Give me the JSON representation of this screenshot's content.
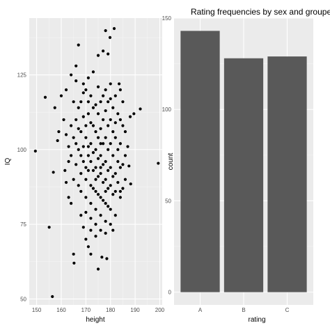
{
  "chart_data": [
    {
      "type": "scatter",
      "title": "",
      "xlabel": "height",
      "ylabel": "IQ",
      "xlim": [
        147,
        201
      ],
      "ylim": [
        48,
        144
      ],
      "x_ticks": [
        "150",
        "160",
        "170",
        "180",
        "190",
        "200"
      ],
      "y_ticks": [
        "50",
        "75",
        "100",
        "125"
      ],
      "grid": true,
      "points": [
        [
          149.5,
          99.5
        ],
        [
          153.5,
          117.5
        ],
        [
          155.1,
          74
        ],
        [
          156.4,
          50.8
        ],
        [
          156.8,
          92.4
        ],
        [
          157.4,
          114
        ],
        [
          199.4,
          95.4
        ],
        [
          192.1,
          113.6
        ],
        [
          188.2,
          88.5
        ],
        [
          187.5,
          94.5
        ],
        [
          188,
          111
        ],
        [
          189.5,
          112
        ],
        [
          165,
          65
        ],
        [
          165.2,
          62
        ],
        [
          167,
          135
        ],
        [
          171,
          67.5
        ],
        [
          172,
          65
        ],
        [
          175,
          60
        ],
        [
          176.5,
          64
        ],
        [
          178.5,
          63.5
        ],
        [
          177,
          133
        ],
        [
          175,
          131.5
        ],
        [
          178,
          139.8
        ],
        [
          179.8,
          137.5
        ],
        [
          181.5,
          140.5
        ],
        [
          179,
          132
        ],
        [
          183.5,
          122
        ],
        [
          184,
          120
        ],
        [
          185,
          116
        ],
        [
          187,
          101
        ],
        [
          185,
          95
        ],
        [
          186,
          90
        ],
        [
          184,
          86
        ],
        [
          180,
          75
        ],
        [
          181,
          73
        ],
        [
          182,
          78
        ],
        [
          183,
          100
        ],
        [
          160,
          118
        ],
        [
          161,
          110
        ],
        [
          162,
          105
        ],
        [
          163,
          96
        ],
        [
          161.5,
          93
        ],
        [
          158.5,
          103
        ],
        [
          159,
          106
        ],
        [
          162,
          120
        ],
        [
          164,
          125
        ],
        [
          166,
          123
        ],
        [
          166,
          128
        ],
        [
          168,
          78
        ],
        [
          169,
          74
        ],
        [
          170,
          70
        ],
        [
          172,
          73
        ],
        [
          174,
          71
        ],
        [
          176,
          73
        ],
        [
          178,
          72
        ],
        [
          169,
          119
        ],
        [
          171,
          116
        ],
        [
          173,
          114
        ],
        [
          175,
          112
        ],
        [
          177,
          110
        ],
        [
          179,
          108
        ],
        [
          181,
          106
        ],
        [
          168,
          106
        ],
        [
          170,
          104
        ],
        [
          172,
          102
        ],
        [
          174,
          100
        ],
        [
          176,
          98
        ],
        [
          178,
          96
        ],
        [
          180,
          94
        ],
        [
          168,
          92
        ],
        [
          170,
          90
        ],
        [
          172,
          88
        ],
        [
          174,
          86
        ],
        [
          176,
          84
        ],
        [
          178,
          82
        ],
        [
          180,
          80
        ],
        [
          166,
          110
        ],
        [
          167,
          100
        ],
        [
          165,
          90
        ],
        [
          164,
          82
        ],
        [
          163,
          84
        ],
        [
          167,
          88
        ],
        [
          169,
          96
        ],
        [
          171,
          98
        ],
        [
          173,
          93
        ],
        [
          175,
          91
        ],
        [
          177,
          89
        ],
        [
          179,
          87
        ],
        [
          181,
          85
        ],
        [
          173,
          108
        ],
        [
          175,
          104
        ],
        [
          177,
          102
        ],
        [
          179,
          100
        ],
        [
          181,
          98
        ],
        [
          183,
          96
        ],
        [
          171,
          112
        ],
        [
          169,
          122
        ],
        [
          171,
          124
        ],
        [
          173,
          126
        ],
        [
          175,
          121
        ],
        [
          177,
          118
        ],
        [
          179,
          116
        ],
        [
          181,
          114
        ],
        [
          183,
          112
        ],
        [
          185,
          108
        ],
        [
          167,
          114
        ],
        [
          165,
          116
        ],
        [
          164,
          108
        ],
        [
          166,
          102
        ],
        [
          168,
          98
        ],
        [
          170,
          94
        ],
        [
          172,
          82
        ],
        [
          174,
          80
        ],
        [
          176,
          78
        ],
        [
          178,
          76
        ],
        [
          174,
          90
        ],
        [
          176,
          94
        ],
        [
          178,
          104
        ],
        [
          180,
          110
        ],
        [
          182,
          104
        ],
        [
          184,
          102
        ],
        [
          186,
          98
        ],
        [
          168,
          86
        ],
        [
          170,
          84
        ],
        [
          172,
          96
        ],
        [
          174,
          106
        ],
        [
          176,
          116
        ],
        [
          178,
          120
        ],
        [
          180,
          122
        ],
        [
          182,
          118
        ],
        [
          184,
          110
        ],
        [
          186,
          106
        ],
        [
          170,
          108
        ],
        [
          172,
          118
        ],
        [
          174,
          94
        ],
        [
          176,
          102
        ],
        [
          178,
          90
        ],
        [
          180,
          102
        ],
        [
          182,
          92
        ],
        [
          184,
          94
        ],
        [
          166,
          95
        ],
        [
          164,
          98
        ],
        [
          163,
          101
        ],
        [
          162,
          89
        ],
        [
          165,
          104
        ],
        [
          167,
          107
        ],
        [
          169,
          111
        ],
        [
          171,
          101
        ],
        [
          173,
          99
        ],
        [
          175,
          97
        ],
        [
          177,
          95
        ],
        [
          179,
          93
        ],
        [
          181,
          91
        ],
        [
          183,
          89
        ],
        [
          185,
          87
        ],
        [
          169,
          101
        ],
        [
          171,
          93
        ],
        [
          173,
          87
        ],
        [
          175,
          85
        ],
        [
          177,
          83
        ],
        [
          179,
          81
        ],
        [
          170,
          79
        ],
        [
          172,
          77
        ],
        [
          174,
          75
        ],
        [
          176,
          92
        ],
        [
          178,
          86
        ],
        [
          180,
          88
        ],
        [
          182,
          86
        ],
        [
          184,
          84
        ],
        [
          168,
          116
        ],
        [
          170,
          120
        ],
        [
          172,
          109
        ],
        [
          174,
          115
        ],
        [
          176,
          107
        ],
        [
          178,
          113
        ],
        [
          180,
          117
        ],
        [
          182,
          109
        ]
      ]
    },
    {
      "type": "bar",
      "title": "Rating frequencies by sex and groupe",
      "xlabel": "rating",
      "ylabel": "count",
      "categories": [
        "A",
        "B",
        "C"
      ],
      "values": [
        143,
        128,
        129
      ],
      "ylim": [
        -7,
        150
      ],
      "y_ticks": [
        "0",
        "50",
        "100",
        "150"
      ],
      "grid": true
    }
  ]
}
